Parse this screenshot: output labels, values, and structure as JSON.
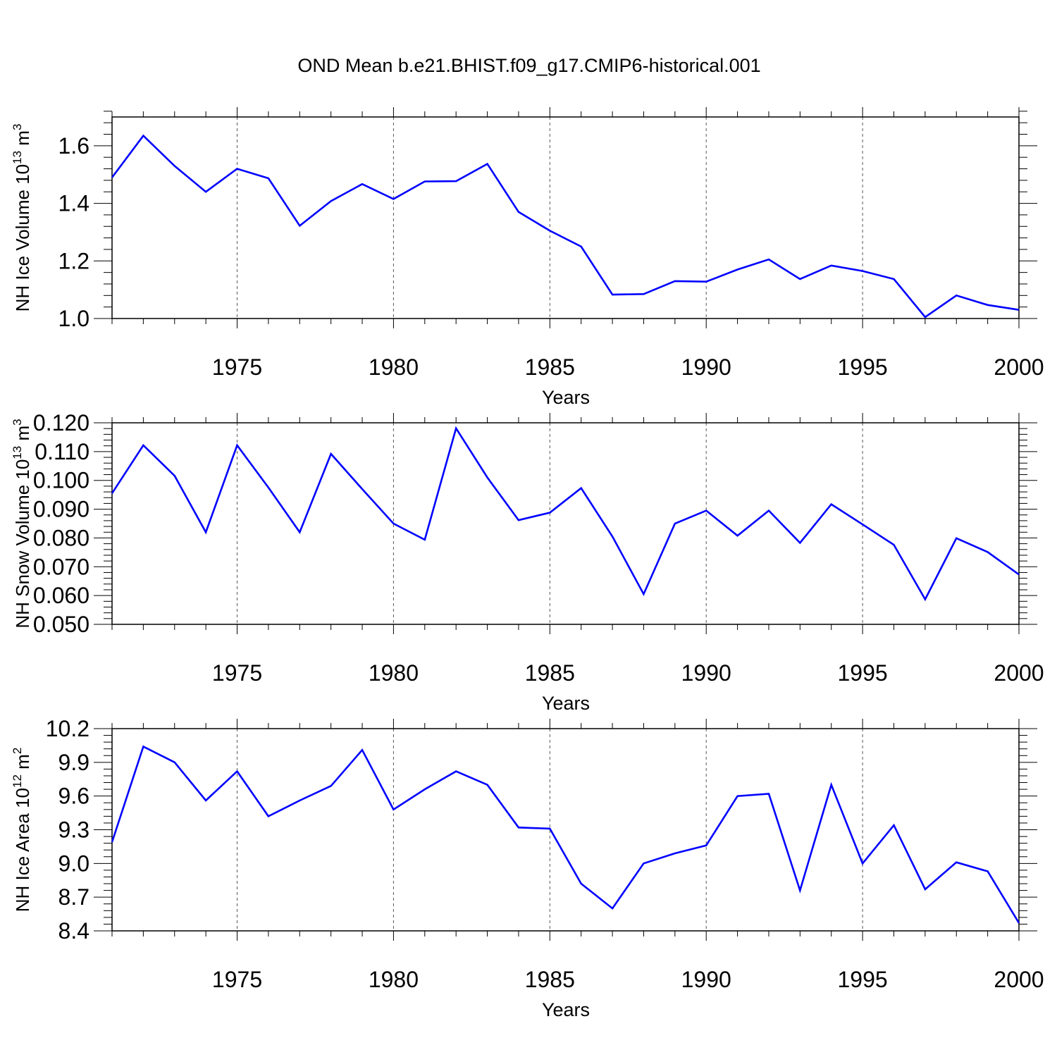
{
  "figure": {
    "title": "OND Mean b.e21.BHIST.f09_g17.CMIP6-historical.001",
    "line_color": "#0000ff",
    "axis_color": "#000000",
    "grid_color": "#555555"
  },
  "chart_data": [
    {
      "type": "line",
      "title": "",
      "xlabel": "Years",
      "ylabel": "NH Ice Volume 10",
      "ylabel_sup": "13",
      "ylabel_unit": "m",
      "ylabel_unit_sup": "3",
      "xlim": [
        1971,
        2000
      ],
      "ylim": [
        1.0,
        1.7
      ],
      "xticks": [
        1975,
        1980,
        1985,
        1990,
        1995,
        2000
      ],
      "xtick_labels": [
        "1975",
        "1980",
        "1985",
        "1990",
        "1995",
        "2000"
      ],
      "yticks": [
        1.0,
        1.2,
        1.4,
        1.6
      ],
      "ytick_labels": [
        "1.0",
        "1.2",
        "1.4",
        "1.6"
      ],
      "grid": "vertical dashed at major x ticks",
      "series": [
        {
          "name": "NH Ice Volume",
          "x": [
            1971,
            1972,
            1973,
            1974,
            1975,
            1976,
            1977,
            1978,
            1979,
            1980,
            1981,
            1982,
            1983,
            1984,
            1985,
            1986,
            1987,
            1988,
            1989,
            1990,
            1991,
            1992,
            1993,
            1994,
            1995,
            1996,
            1997,
            1998,
            1999,
            2000
          ],
          "values": [
            1.49,
            1.635,
            1.53,
            1.44,
            1.52,
            1.487,
            1.322,
            1.408,
            1.467,
            1.415,
            1.476,
            1.477,
            1.537,
            1.37,
            1.305,
            1.25,
            1.083,
            1.085,
            1.13,
            1.128,
            1.17,
            1.205,
            1.137,
            1.184,
            1.165,
            1.137,
            1.005,
            1.08,
            1.047,
            1.03
          ]
        }
      ]
    },
    {
      "type": "line",
      "title": "",
      "xlabel": "Years",
      "ylabel": "NH Snow Volume 10",
      "ylabel_sup": "13",
      "ylabel_unit": "m",
      "ylabel_unit_sup": "3",
      "xlim": [
        1971,
        2000
      ],
      "ylim": [
        0.05,
        0.12
      ],
      "xticks": [
        1975,
        1980,
        1985,
        1990,
        1995,
        2000
      ],
      "xtick_labels": [
        "1975",
        "1980",
        "1985",
        "1990",
        "1995",
        "2000"
      ],
      "yticks": [
        0.05,
        0.06,
        0.07,
        0.08,
        0.09,
        0.1,
        0.11,
        0.12
      ],
      "ytick_labels": [
        "0.050",
        "0.060",
        "0.070",
        "0.080",
        "0.090",
        "0.100",
        "0.110",
        "0.120"
      ],
      "grid": "vertical dashed at major x ticks",
      "series": [
        {
          "name": "NH Snow Volume",
          "x": [
            1971,
            1972,
            1973,
            1974,
            1975,
            1976,
            1977,
            1978,
            1979,
            1980,
            1981,
            1982,
            1983,
            1984,
            1985,
            1986,
            1987,
            1988,
            1989,
            1990,
            1991,
            1992,
            1993,
            1994,
            1995,
            1996,
            1997,
            1998,
            1999,
            2000
          ],
          "values": [
            0.0955,
            0.1122,
            0.1016,
            0.082,
            0.1122,
            0.0975,
            0.082,
            0.1092,
            0.097,
            0.085,
            0.0794,
            0.1181,
            0.101,
            0.0862,
            0.0888,
            0.0973,
            0.0805,
            0.0605,
            0.085,
            0.0895,
            0.0808,
            0.0895,
            0.0783,
            0.0917,
            0.0847,
            0.0776,
            0.0587,
            0.0799,
            0.0751,
            0.0673
          ]
        }
      ]
    },
    {
      "type": "line",
      "title": "",
      "xlabel": "Years",
      "ylabel": "NH Ice Area 10",
      "ylabel_sup": "12",
      "ylabel_unit": "m",
      "ylabel_unit_sup": "2",
      "xlim": [
        1971,
        2000
      ],
      "ylim": [
        8.4,
        10.2
      ],
      "xticks": [
        1975,
        1980,
        1985,
        1990,
        1995,
        2000
      ],
      "xtick_labels": [
        "1975",
        "1980",
        "1985",
        "1990",
        "1995",
        "2000"
      ],
      "yticks": [
        8.4,
        8.7,
        9.0,
        9.3,
        9.6,
        9.9,
        10.2
      ],
      "ytick_labels": [
        "8.4",
        "8.7",
        "9.0",
        "9.3",
        "9.6",
        "9.9",
        "10.2"
      ],
      "grid": "vertical dashed at major x ticks",
      "series": [
        {
          "name": "NH Ice Area",
          "x": [
            1971,
            1972,
            1973,
            1974,
            1975,
            1976,
            1977,
            1978,
            1979,
            1980,
            1981,
            1982,
            1983,
            1984,
            1985,
            1986,
            1987,
            1988,
            1989,
            1990,
            1991,
            1992,
            1993,
            1994,
            1995,
            1996,
            1997,
            1998,
            1999,
            2000
          ],
          "values": [
            9.19,
            10.04,
            9.9,
            9.56,
            9.82,
            9.42,
            9.56,
            9.69,
            10.01,
            9.48,
            9.66,
            9.82,
            9.7,
            9.32,
            9.31,
            8.82,
            8.6,
            9.0,
            9.09,
            9.16,
            9.6,
            9.62,
            8.76,
            9.7,
            9.0,
            9.34,
            8.77,
            9.01,
            8.93,
            8.47
          ]
        }
      ]
    }
  ]
}
